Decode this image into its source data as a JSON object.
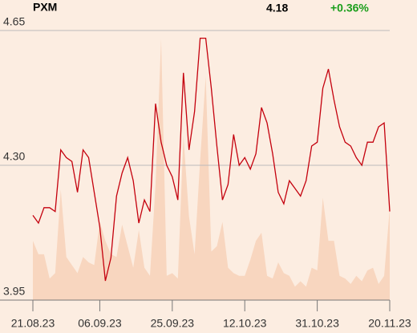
{
  "chart_data": {
    "type": "line",
    "title": "PXM",
    "price": 4.18,
    "change": "+0.36%",
    "change_color": "#1a9e1a",
    "categories": [
      "21.08.23",
      null,
      null,
      null,
      null,
      null,
      null,
      null,
      null,
      null,
      null,
      null,
      "06.09.23",
      null,
      null,
      null,
      null,
      null,
      null,
      null,
      null,
      null,
      null,
      null,
      null,
      "25.09.23",
      null,
      null,
      null,
      null,
      null,
      null,
      null,
      null,
      null,
      null,
      null,
      null,
      "12.10.23",
      null,
      null,
      null,
      null,
      null,
      null,
      null,
      null,
      null,
      null,
      null,
      null,
      "31.10.23",
      null,
      null,
      null,
      null,
      null,
      null,
      null,
      null,
      null,
      null,
      null,
      null,
      "20.11.23"
    ],
    "series": [
      {
        "type": "line",
        "color": "#c4000d",
        "values": [
          4.17,
          4.15,
          4.19,
          4.19,
          4.18,
          4.34,
          4.32,
          4.31,
          4.23,
          4.34,
          4.32,
          4.23,
          4.14,
          4.0,
          4.06,
          4.22,
          4.28,
          4.32,
          4.26,
          4.15,
          4.21,
          4.18,
          4.46,
          4.36,
          4.3,
          4.27,
          4.21,
          4.54,
          4.34,
          4.44,
          4.63,
          4.63,
          4.5,
          4.35,
          4.21,
          4.25,
          4.38,
          4.3,
          4.32,
          4.29,
          4.33,
          4.45,
          4.41,
          4.33,
          4.23,
          4.2,
          4.26,
          4.24,
          4.22,
          4.26,
          4.35,
          4.36,
          4.5,
          4.55,
          4.47,
          4.4,
          4.36,
          4.35,
          4.32,
          4.3,
          4.36,
          4.36,
          4.4,
          4.41,
          4.18
        ]
      },
      {
        "type": "area",
        "color": "#f8d6bf",
        "axis": "y2",
        "values": [
          22,
          17,
          17,
          8,
          10,
          41,
          16,
          13,
          10,
          16,
          14,
          13,
          29,
          22,
          17,
          16,
          28,
          20,
          12,
          26,
          12,
          9,
          43,
          97,
          9,
          10,
          8,
          61,
          31,
          17,
          52,
          83,
          18,
          20,
          29,
          12,
          10,
          9,
          9,
          15,
          22,
          25,
          9,
          8,
          14,
          10,
          9,
          5,
          7,
          5,
          12,
          11,
          38,
          22,
          22,
          9,
          8,
          6,
          9,
          7,
          11,
          12,
          6,
          9,
          34
        ]
      }
    ],
    "ylim": [
      3.95,
      4.65
    ],
    "yticks": [
      3.95,
      {
        "value": 4.3,
        "label": "4.30"
      },
      4.65
    ],
    "y2lim": [
      0,
      100
    ],
    "grid": true
  }
}
